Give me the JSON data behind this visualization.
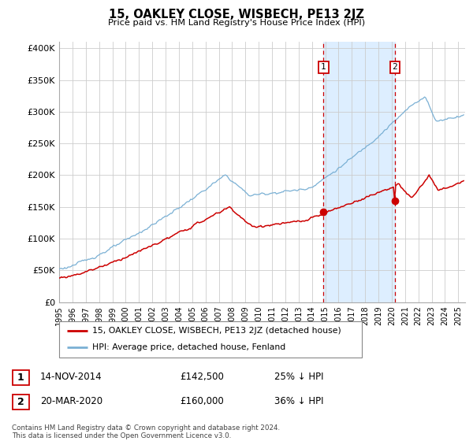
{
  "title": "15, OAKLEY CLOSE, WISBECH, PE13 2JZ",
  "subtitle": "Price paid vs. HM Land Registry's House Price Index (HPI)",
  "ylabel_ticks": [
    "£0",
    "£50K",
    "£100K",
    "£150K",
    "£200K",
    "£250K",
    "£300K",
    "£350K",
    "£400K"
  ],
  "ytick_values": [
    0,
    50000,
    100000,
    150000,
    200000,
    250000,
    300000,
    350000,
    400000
  ],
  "ylim": [
    0,
    410000
  ],
  "xlim_start": 1995.0,
  "xlim_end": 2025.5,
  "red_line_color": "#cc0000",
  "blue_line_color": "#7ab0d4",
  "highlight_bg_color": "#ddeeff",
  "grid_color": "#cccccc",
  "transaction1_x": 2014.87,
  "transaction1_y": 142500,
  "transaction2_x": 2020.22,
  "transaction2_y": 160000,
  "legend_label_red": "15, OAKLEY CLOSE, WISBECH, PE13 2JZ (detached house)",
  "legend_label_blue": "HPI: Average price, detached house, Fenland",
  "table_row1": [
    "1",
    "14-NOV-2014",
    "£142,500",
    "25% ↓ HPI"
  ],
  "table_row2": [
    "2",
    "20-MAR-2020",
    "£160,000",
    "36% ↓ HPI"
  ],
  "footer": "Contains HM Land Registry data © Crown copyright and database right 2024.\nThis data is licensed under the Open Government Licence v3.0.",
  "bg_color": "#ffffff"
}
